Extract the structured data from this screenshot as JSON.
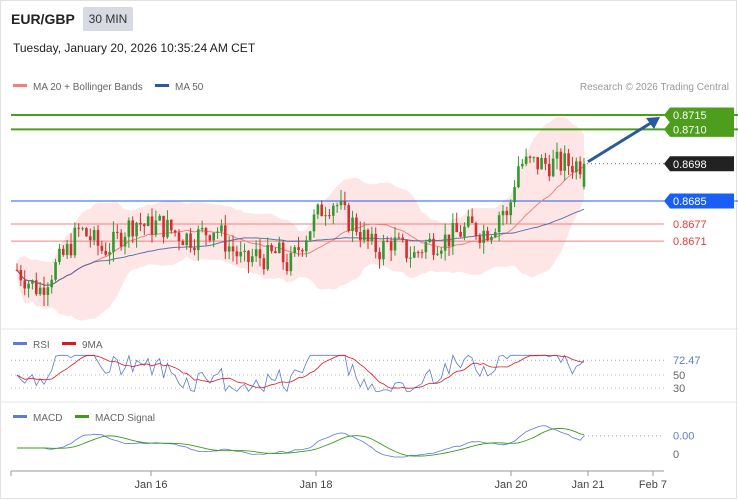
{
  "header": {
    "symbol": "EUR/GBP",
    "timeframe": "30 MIN",
    "timestamp": "Tuesday, January 20, 2026 10:35:24 AM CET"
  },
  "legend": {
    "ma20_label": "MA 20 + Bollinger Bands",
    "ma50_label": "MA 50",
    "credit": "Research © 2026 Trading Central",
    "rsi_label": "RSI",
    "rsi_ma_label": "9MA",
    "macd_label": "MACD",
    "macd_signal_label": "MACD Signal"
  },
  "colors": {
    "ma20": "#f08080",
    "ma50": "#2d5a9c",
    "bands_fill": "#fddede",
    "candle_up": "#2f9a2f",
    "candle_down": "#d32f2f",
    "target_lines": "#4d9e1c",
    "support_line": "#1a5ff5",
    "red_lines": "#f08080",
    "arrow": "#2a5a9c",
    "rsi": "#5b7bd5",
    "rsi_ma": "#d81b1b",
    "macd": "#5b7bd5",
    "macd_signal": "#3d9a1a"
  },
  "price_levels": [
    {
      "value": 0.8715,
      "label": "0.8715",
      "kind": "target",
      "color": "#4d9e1c"
    },
    {
      "value": 0.871,
      "label": "0.8710",
      "kind": "target",
      "color": "#4d9e1c"
    },
    {
      "value": 0.8698,
      "label": "0.8698",
      "kind": "last",
      "color": "#222222"
    },
    {
      "value": 0.8685,
      "label": "0.8685",
      "kind": "pivot",
      "color": "#1a5ff5"
    },
    {
      "value": 0.8677,
      "label": "0.8677",
      "kind": "support",
      "color": "#e53935"
    },
    {
      "value": 0.8671,
      "label": "0.8671",
      "kind": "support",
      "color": "#e53935"
    }
  ],
  "rsi_axis": [
    {
      "value": 72.47,
      "label": "72.47"
    },
    {
      "value": 50,
      "label": "50"
    },
    {
      "value": 30,
      "label": "30"
    }
  ],
  "macd_axis": [
    {
      "value": 0.0,
      "label": "0.00"
    },
    {
      "value": 0,
      "label": "0"
    }
  ],
  "x_axis": [
    "Jan 16",
    "Jan 18",
    "Jan 20",
    "Jan 21",
    "Feb 7"
  ],
  "chart_data": {
    "type": "candlestick",
    "title": "EUR/GBP 30 MIN",
    "y_range": [
      0.864,
      0.8722
    ],
    "price_path": [
      [
        0,
        0.8661
      ],
      [
        0.02,
        0.8657
      ],
      [
        0.04,
        0.8654
      ],
      [
        0.06,
        0.866
      ],
      [
        0.09,
        0.8668
      ],
      [
        0.11,
        0.8675
      ],
      [
        0.13,
        0.8672
      ],
      [
        0.15,
        0.8668
      ],
      [
        0.17,
        0.867
      ],
      [
        0.19,
        0.8675
      ],
      [
        0.21,
        0.8678
      ],
      [
        0.23,
        0.8676
      ],
      [
        0.25,
        0.8677
      ],
      [
        0.27,
        0.8675
      ],
      [
        0.29,
        0.8673
      ],
      [
        0.31,
        0.8672
      ],
      [
        0.33,
        0.8674
      ],
      [
        0.35,
        0.8676
      ],
      [
        0.37,
        0.867
      ],
      [
        0.39,
        0.8666
      ],
      [
        0.4,
        0.8663
      ],
      [
        0.42,
        0.8666
      ],
      [
        0.44,
        0.8665
      ],
      [
        0.46,
        0.8667
      ],
      [
        0.48,
        0.8662
      ],
      [
        0.5,
        0.867
      ],
      [
        0.52,
        0.8677
      ],
      [
        0.54,
        0.8683
      ],
      [
        0.56,
        0.8685
      ],
      [
        0.58,
        0.8679
      ],
      [
        0.6,
        0.8676
      ],
      [
        0.62,
        0.867
      ],
      [
        0.64,
        0.8668
      ],
      [
        0.66,
        0.8671
      ],
      [
        0.68,
        0.8668
      ],
      [
        0.7,
        0.8666
      ],
      [
        0.72,
        0.867
      ],
      [
        0.74,
        0.8671
      ],
      [
        0.76,
        0.8672
      ],
      [
        0.78,
        0.8674
      ],
      [
        0.8,
        0.8676
      ],
      [
        0.82,
        0.8674
      ],
      [
        0.84,
        0.8676
      ],
      [
        0.855,
        0.8683
      ],
      [
        0.865,
        0.8678
      ],
      [
        0.875,
        0.869
      ],
      [
        0.885,
        0.8698
      ]
    ],
    "rsi_last": 72.47,
    "forecast": {
      "from": 0.8698,
      "to": 0.8715,
      "direction": "up"
    }
  }
}
